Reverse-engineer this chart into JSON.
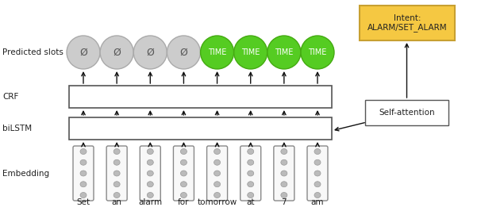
{
  "words": [
    "Set",
    "an",
    "alarm",
    "for",
    "tomorrow",
    "at",
    "7",
    "am"
  ],
  "slot_labels": [
    "Ø",
    "Ø",
    "Ø",
    "Ø",
    "TIME",
    "TIME",
    "TIME",
    "TIME"
  ],
  "slot_colors_null": "#cccccc",
  "slot_edge_null": "#aaaaaa",
  "slot_colors_time": "#55cc22",
  "slot_edge_time": "#44aa11",
  "slot_text_null": "#555555",
  "slot_text_time": "#ffffff",
  "intent_text": "Intent:\nALARM/SET_ALARM",
  "intent_bg": "#f5c842",
  "intent_border": "#c8a030",
  "self_attn_text": "Self-attention",
  "layer_labels": [
    "Predicted slots",
    "CRF",
    "biLSTM",
    "Embedding"
  ],
  "bg_color": "#ffffff",
  "n_tokens": 8,
  "n_embed_dots": 5,
  "dot_color": "#bbbbbb",
  "dot_edge": "#999999",
  "embed_box_color": "#f8f8f8",
  "embed_box_edge": "#888888",
  "layer_box_color": "#ffffff",
  "layer_box_edge": "#555555",
  "arrow_color": "#111111"
}
